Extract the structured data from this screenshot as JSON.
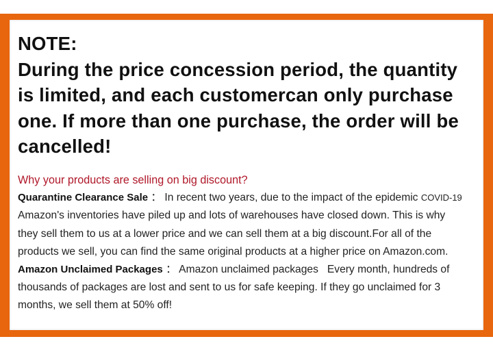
{
  "note": {
    "lines": [
      "NOTE:",
      "During the price concession period, the quantity",
      "is limited, and each customercan only purchase",
      "one. If more than one purchase, the order will be",
      "cancelled!"
    ]
  },
  "body": {
    "question": "Why your products are selling on big discount?",
    "quarantine": {
      "label": "Quarantine Clearance Sale",
      "separator": " ： ",
      "first_line": "In recent two years, due to the impact of the epidemic ",
      "covid": "COVID-19",
      "lines": [
        "Amazon's inventories have piled up and lots of warehouses have closed down. This is why",
        "they sell them to us at a lower price and we can sell them at a big discount.For all of the",
        "products we sell, you can find the same original products at a higher price on Amazon.com."
      ]
    },
    "unclaimed": {
      "label": "Amazon Unclaimed Packages",
      "separator": " ： ",
      "first_line": "Amazon unclaimed packages   Every month, hundreds of",
      "lines": [
        "thousands of packages are lost and sent to us for safe keeping. If they go unclaimed for 3",
        "months, we sell them at 50% off!"
      ]
    }
  },
  "colors": {
    "frame": "#e8660e",
    "question": "#b0182a"
  }
}
